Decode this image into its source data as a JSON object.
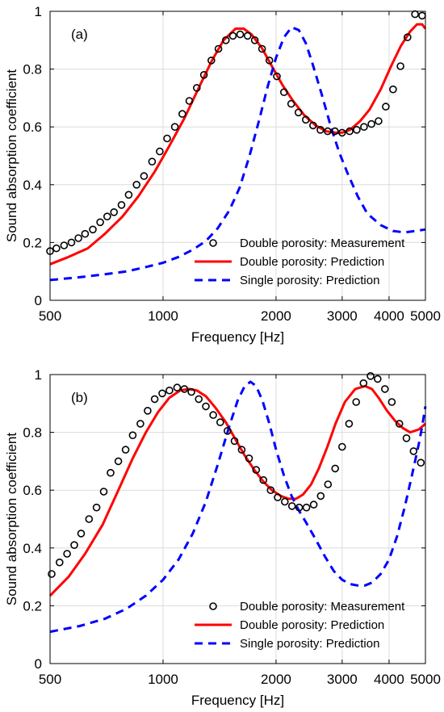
{
  "figure": {
    "marker_color": "#000000",
    "prediction_color": "#ff0000",
    "single_color": "#0000ff",
    "grid_color": "#dcdcdc"
  },
  "chart_data": [
    {
      "type": "line",
      "panel_label": "(a)",
      "xlabel": "Frequency [Hz]",
      "ylabel": "Sound absorption coefficient",
      "xscale": "log",
      "xlim": [
        500,
        5000
      ],
      "ylim": [
        0,
        1
      ],
      "xticks": [
        500,
        1000,
        2000,
        3000,
        4000,
        5000
      ],
      "xtick_labels": [
        "500",
        "1000",
        "2000",
        "3000",
        "4000",
        "5000"
      ],
      "yticks": [
        0,
        0.2,
        0.4,
        0.6,
        0.8,
        1
      ],
      "ytick_labels": [
        "0",
        "0.2",
        "0.4",
        "0.6",
        "0.8",
        "1"
      ],
      "grid": true,
      "legend_position": "bottom-right",
      "series": [
        {
          "name": "Double porosity: Measurement",
          "style": "markers",
          "color": "#000000",
          "x": [
            500,
            520,
            545,
            570,
            595,
            620,
            650,
            680,
            710,
            740,
            775,
            810,
            850,
            890,
            935,
            980,
            1025,
            1075,
            1125,
            1175,
            1230,
            1285,
            1345,
            1405,
            1470,
            1535,
            1605,
            1680,
            1755,
            1835,
            1920,
            2010,
            2100,
            2195,
            2295,
            2400,
            2510,
            2625,
            2745,
            2870,
            3000,
            3140,
            3280,
            3430,
            3590,
            3750,
            3920,
            4100,
            4290,
            4480,
            4690,
            4900
          ],
          "y": [
            0.17,
            0.18,
            0.19,
            0.2,
            0.215,
            0.23,
            0.245,
            0.27,
            0.29,
            0.305,
            0.33,
            0.365,
            0.4,
            0.43,
            0.48,
            0.515,
            0.56,
            0.6,
            0.645,
            0.69,
            0.735,
            0.78,
            0.83,
            0.87,
            0.9,
            0.915,
            0.92,
            0.915,
            0.9,
            0.87,
            0.83,
            0.775,
            0.72,
            0.68,
            0.65,
            0.625,
            0.605,
            0.59,
            0.585,
            0.585,
            0.58,
            0.585,
            0.59,
            0.6,
            0.61,
            0.62,
            0.67,
            0.73,
            0.81,
            0.91,
            0.99,
            0.985
          ]
        },
        {
          "name": "Double porosity: Prediction",
          "style": "solid",
          "color": "#ff0000",
          "x": [
            500,
            560,
            630,
            700,
            780,
            860,
            950,
            1040,
            1140,
            1250,
            1350,
            1450,
            1560,
            1640,
            1720,
            1830,
            1950,
            2080,
            2220,
            2380,
            2550,
            2720,
            2880,
            3000,
            3150,
            3350,
            3550,
            3800,
            4050,
            4300,
            4550,
            4750,
            4900,
            5000
          ],
          "y": [
            0.125,
            0.15,
            0.18,
            0.23,
            0.29,
            0.36,
            0.445,
            0.535,
            0.63,
            0.74,
            0.83,
            0.9,
            0.94,
            0.94,
            0.92,
            0.875,
            0.81,
            0.745,
            0.69,
            0.64,
            0.605,
            0.585,
            0.58,
            0.58,
            0.59,
            0.62,
            0.66,
            0.73,
            0.81,
            0.88,
            0.93,
            0.955,
            0.955,
            0.94
          ]
        },
        {
          "name": "Single porosity: Prediction",
          "style": "dashed",
          "color": "#0000ff",
          "x": [
            500,
            600,
            700,
            800,
            900,
            1000,
            1100,
            1200,
            1300,
            1400,
            1500,
            1600,
            1700,
            1800,
            1900,
            2000,
            2100,
            2200,
            2300,
            2400,
            2500,
            2650,
            2800,
            2950,
            3100,
            3300,
            3500,
            3800,
            4100,
            4400,
            4700,
            5000
          ],
          "y": [
            0.07,
            0.08,
            0.09,
            0.1,
            0.115,
            0.13,
            0.15,
            0.175,
            0.205,
            0.25,
            0.31,
            0.39,
            0.5,
            0.62,
            0.74,
            0.84,
            0.91,
            0.945,
            0.935,
            0.89,
            0.82,
            0.71,
            0.6,
            0.51,
            0.44,
            0.36,
            0.3,
            0.26,
            0.24,
            0.235,
            0.24,
            0.245
          ]
        }
      ]
    },
    {
      "type": "line",
      "panel_label": "(b)",
      "xlabel": "Frequency [Hz]",
      "ylabel": "Sound absorption coefficient",
      "xscale": "log",
      "xlim": [
        500,
        5000
      ],
      "ylim": [
        0,
        1
      ],
      "xticks": [
        500,
        1000,
        2000,
        3000,
        4000,
        5000
      ],
      "xtick_labels": [
        "500",
        "1000",
        "2000",
        "3000",
        "4000",
        "5000"
      ],
      "yticks": [
        0,
        0.2,
        0.4,
        0.6,
        0.8,
        1
      ],
      "ytick_labels": [
        "0",
        "0.2",
        "0.4",
        "0.6",
        "0.8",
        "1"
      ],
      "grid": true,
      "legend_position": "bottom-right",
      "series": [
        {
          "name": "Double porosity: Measurement",
          "style": "markers",
          "color": "#000000",
          "x": [
            505,
            530,
            555,
            580,
            605,
            635,
            665,
            695,
            725,
            760,
            795,
            830,
            870,
            910,
            950,
            995,
            1040,
            1090,
            1140,
            1190,
            1245,
            1300,
            1360,
            1420,
            1485,
            1550,
            1620,
            1695,
            1770,
            1850,
            1935,
            2020,
            2110,
            2205,
            2305,
            2410,
            2520,
            2630,
            2750,
            2875,
            3000,
            3130,
            3270,
            3420,
            3570,
            3730,
            3900,
            4070,
            4260,
            4450,
            4650,
            4860
          ],
          "y": [
            0.31,
            0.35,
            0.38,
            0.41,
            0.45,
            0.5,
            0.54,
            0.595,
            0.66,
            0.7,
            0.74,
            0.79,
            0.83,
            0.875,
            0.915,
            0.935,
            0.945,
            0.955,
            0.95,
            0.94,
            0.915,
            0.89,
            0.86,
            0.835,
            0.805,
            0.77,
            0.74,
            0.71,
            0.67,
            0.635,
            0.6,
            0.575,
            0.56,
            0.545,
            0.54,
            0.54,
            0.55,
            0.58,
            0.62,
            0.675,
            0.75,
            0.83,
            0.905,
            0.97,
            0.995,
            0.985,
            0.95,
            0.905,
            0.83,
            0.78,
            0.735,
            0.695
          ]
        },
        {
          "name": "Double porosity: Prediction",
          "style": "solid",
          "color": "#ff0000",
          "x": [
            500,
            560,
            620,
            690,
            760,
            830,
            900,
            970,
            1040,
            1110,
            1170,
            1230,
            1300,
            1380,
            1470,
            1560,
            1650,
            1750,
            1850,
            1950,
            2060,
            2160,
            2260,
            2360,
            2480,
            2600,
            2740,
            2880,
            3050,
            3250,
            3450,
            3600,
            3750,
            3950,
            4150,
            4350,
            4550,
            4800,
            5000
          ],
          "y": [
            0.235,
            0.3,
            0.38,
            0.48,
            0.6,
            0.71,
            0.8,
            0.87,
            0.92,
            0.945,
            0.95,
            0.945,
            0.925,
            0.885,
            0.835,
            0.775,
            0.72,
            0.67,
            0.63,
            0.6,
            0.58,
            0.57,
            0.57,
            0.585,
            0.62,
            0.675,
            0.75,
            0.83,
            0.905,
            0.95,
            0.96,
            0.95,
            0.92,
            0.875,
            0.84,
            0.815,
            0.8,
            0.81,
            0.83
          ]
        },
        {
          "name": "Single porosity: Prediction",
          "style": "dashed",
          "color": "#0000ff",
          "x": [
            500,
            600,
            700,
            800,
            900,
            1000,
            1100,
            1200,
            1300,
            1400,
            1500,
            1580,
            1650,
            1710,
            1770,
            1840,
            1920,
            2000,
            2100,
            2200,
            2300,
            2400,
            2550,
            2700,
            2850,
            3000,
            3150,
            3300,
            3450,
            3600,
            3800,
            4000,
            4200,
            4400,
            4600,
            4800,
            4900,
            5000
          ],
          "y": [
            0.11,
            0.13,
            0.155,
            0.19,
            0.235,
            0.29,
            0.36,
            0.45,
            0.56,
            0.69,
            0.82,
            0.91,
            0.96,
            0.975,
            0.96,
            0.91,
            0.83,
            0.74,
            0.65,
            0.58,
            0.53,
            0.49,
            0.43,
            0.37,
            0.32,
            0.29,
            0.275,
            0.27,
            0.27,
            0.28,
            0.31,
            0.36,
            0.44,
            0.54,
            0.65,
            0.76,
            0.82,
            0.89
          ]
        }
      ]
    }
  ]
}
